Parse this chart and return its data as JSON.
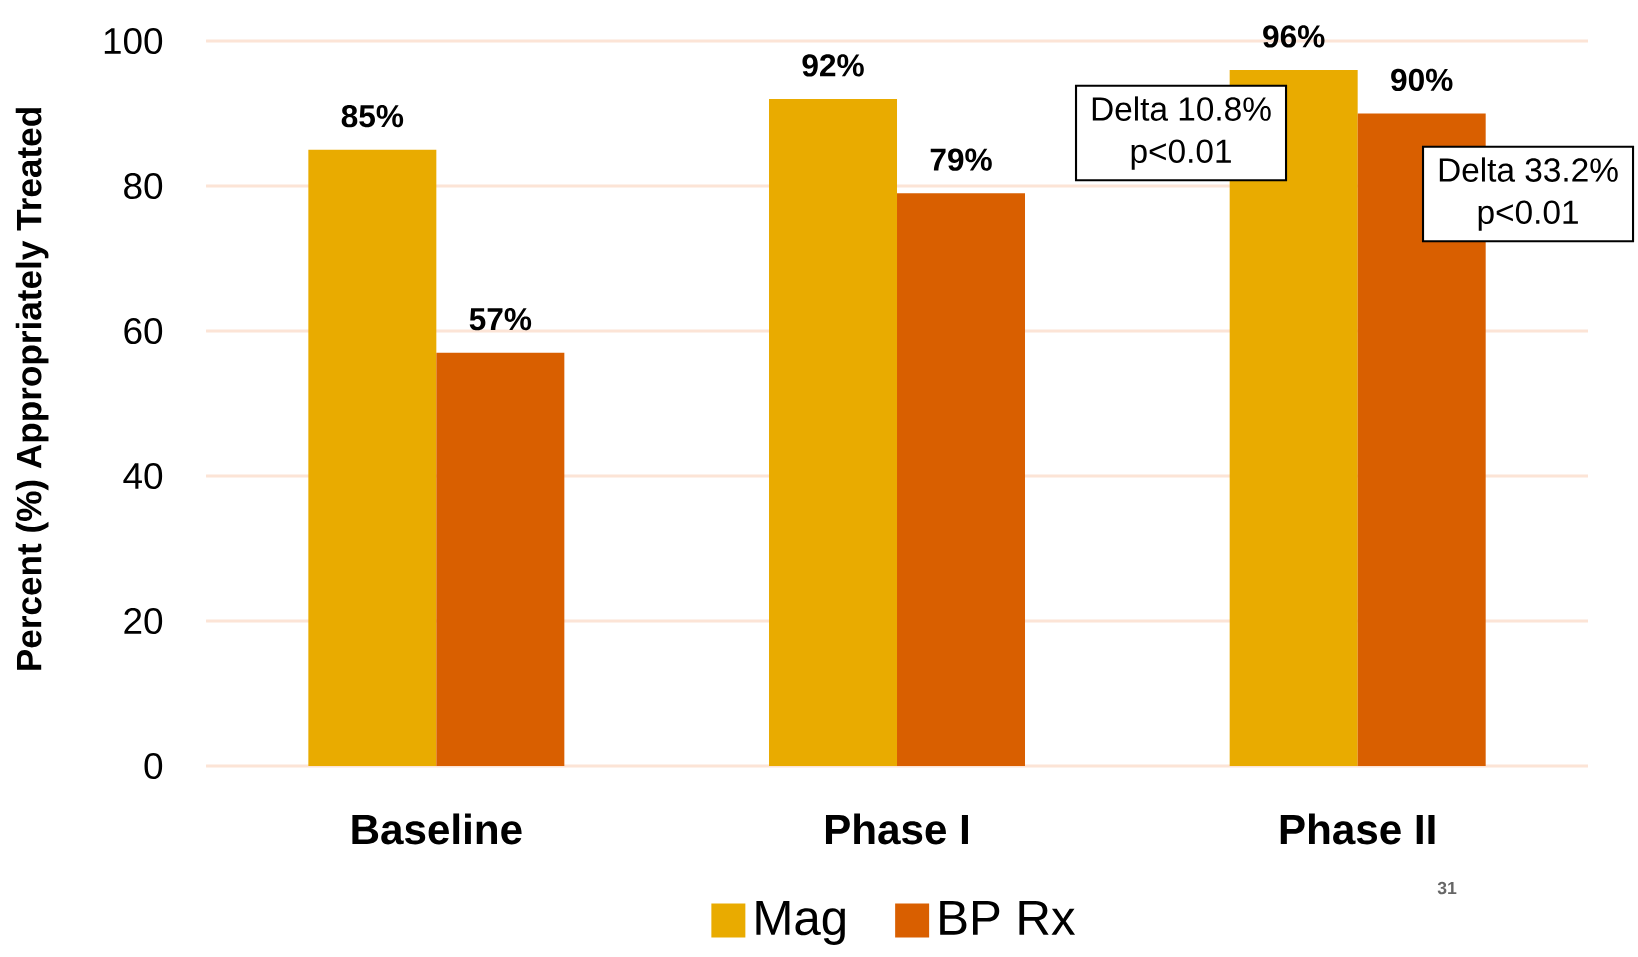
{
  "chart_data": {
    "type": "bar",
    "ylabel": "Percent (%) Appropriately Treated",
    "categories": [
      "Baseline",
      "Phase I",
      "Phase II"
    ],
    "series": [
      {
        "name": "Mag",
        "color": "#e9ab00",
        "values": [
          85,
          92,
          96
        ],
        "value_labels": [
          "85%",
          "92%",
          "96%"
        ]
      },
      {
        "name": "BP Rx",
        "color": "#d95f00",
        "values": [
          57,
          79,
          90
        ],
        "value_labels": [
          "57%",
          "79%",
          "90%"
        ]
      }
    ],
    "ylim": [
      0,
      100
    ],
    "yticks": [
      0,
      20,
      40,
      60,
      80,
      100
    ],
    "grid": "y",
    "legend": "bottom",
    "annotations": [
      "Delta 10.8%",
      "p<0.01",
      "Delta 33.2%",
      "p<0.01",
      "31"
    ]
  }
}
